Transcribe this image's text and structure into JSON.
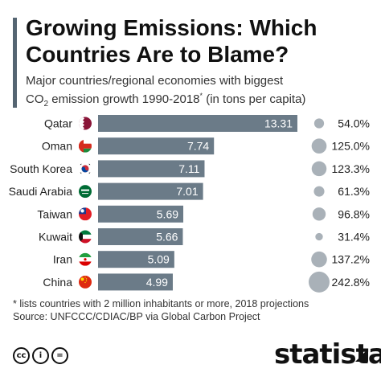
{
  "header": {
    "title": "Growing Emissions: Which Countries Are to Blame?",
    "subtitle_part1": "Major countries/regional economies with biggest",
    "subtitle_co": "CO",
    "subtitle_sub": "2",
    "subtitle_part2": " emission growth 1990-2018",
    "subtitle_sup": "*",
    "subtitle_part3": " (in tons per capita)"
  },
  "chart_data": {
    "type": "bar",
    "orientation": "horizontal",
    "categories": [
      "Qatar",
      "Oman",
      "South Korea",
      "Saudi Arabia",
      "Taiwan",
      "Kuwait",
      "Iran",
      "China"
    ],
    "series": [
      {
        "values": [
          13.31,
          7.74,
          7.11,
          7.01,
          5.69,
          5.66,
          5.09,
          4.99
        ],
        "labels": [
          "13.31",
          "7.74",
          "7.11",
          "7.01",
          "5.69",
          "5.66",
          "5.09",
          "4.99"
        ]
      },
      {
        "values": [
          54.0,
          125.0,
          123.3,
          61.3,
          96.8,
          31.4,
          137.2,
          242.8
        ],
        "labels": [
          "54.0%",
          "125.0%",
          "123.3%",
          "61.3%",
          "96.8%",
          "31.4%",
          "137.2%",
          "242.8%"
        ]
      }
    ],
    "flags": [
      "qatar-flag-icon",
      "oman-flag-icon",
      "south-korea-flag-icon",
      "saudi-arabia-flag-icon",
      "taiwan-flag-icon",
      "kuwait-flag-icon",
      "iran-flag-icon",
      "china-flag-icon"
    ],
    "xlim": [
      0,
      13.31
    ],
    "grid": false,
    "bar_color": "#6b7b88",
    "bubble_color": "#a9b1b8"
  },
  "footer": {
    "footnote": "* lists countries with 2 million inhabitants or more, 2018 projections",
    "source": "Source: UNFCCC/CDIAC/BP via Global Carbon Project",
    "license_icons": [
      "cc",
      "i",
      "="
    ],
    "brand": "statista"
  }
}
